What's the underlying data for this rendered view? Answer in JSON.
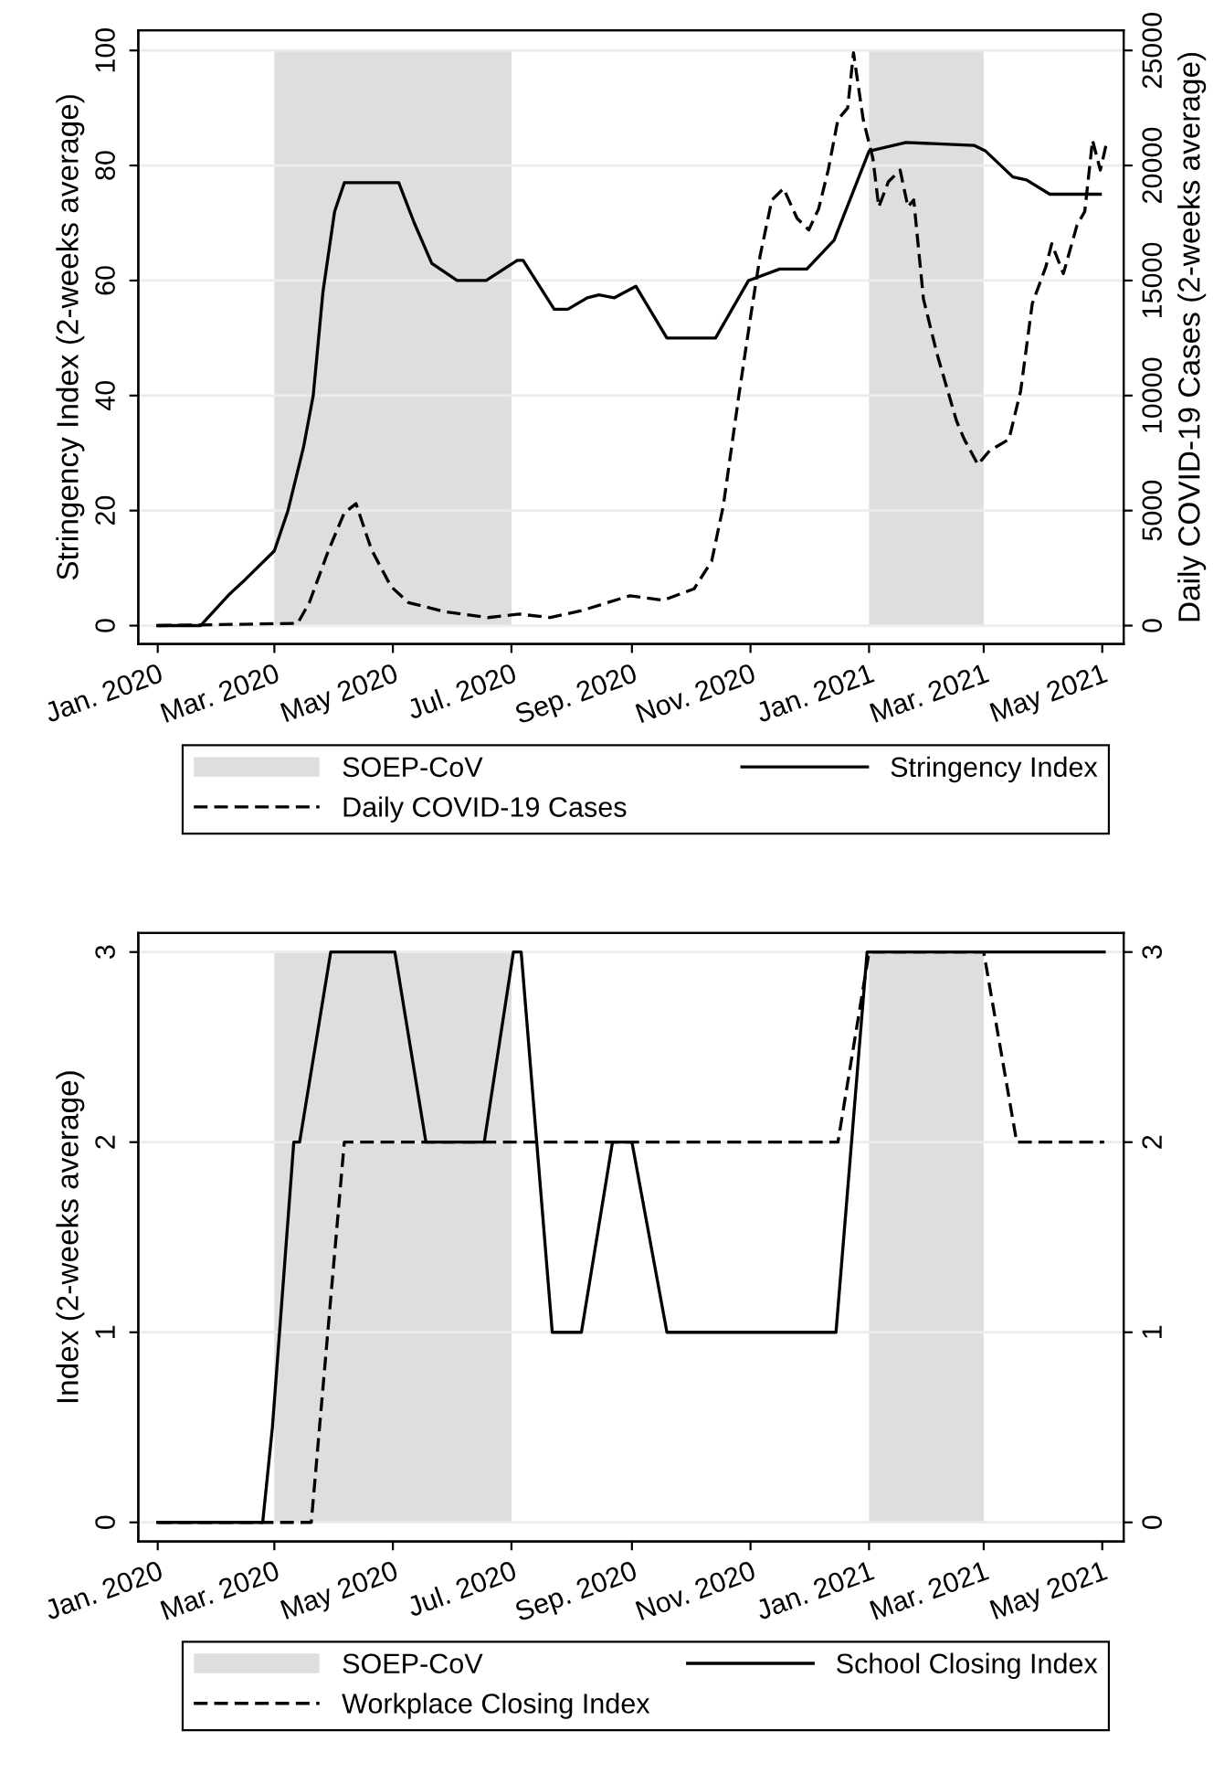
{
  "chart_data": [
    {
      "type": "line",
      "ylabel": "Stringency Index (2-weeks average)",
      "y2label": "Daily COVID-19 Cases (2-weeks average)",
      "xlim": [
        "2019-12-22",
        "2021-05-12"
      ],
      "xticks": [
        {
          "value": "2020-01-01",
          "label": "Jan. 2020"
        },
        {
          "value": "2020-03-01",
          "label": "Mar. 2020"
        },
        {
          "value": "2020-05-01",
          "label": "May 2020"
        },
        {
          "value": "2020-07-01",
          "label": "Jul. 2020"
        },
        {
          "value": "2020-09-01",
          "label": "Sep. 2020"
        },
        {
          "value": "2020-11-01",
          "label": "Nov. 2020"
        },
        {
          "value": "2021-01-01",
          "label": "Jan. 2021"
        },
        {
          "value": "2021-03-01",
          "label": "Mar. 2021"
        },
        {
          "value": "2021-05-01",
          "label": "May 2021"
        }
      ],
      "ylim": [
        -3.2,
        103.5
      ],
      "yticks": [
        0,
        20,
        40,
        60,
        80,
        100
      ],
      "y2lim": [
        -800,
        25875
      ],
      "y2ticks": [
        0,
        5000,
        10000,
        15000,
        20000,
        25000
      ],
      "grid": "y",
      "legend": "bottom",
      "bands": [
        {
          "axis": "x",
          "from": "2020-03-01",
          "to": "2020-07-01",
          "label": "SOEP-CoV",
          "color": "#dedede"
        },
        {
          "axis": "x",
          "from": "2021-01-01",
          "to": "2021-03-01",
          "color": "#dedede"
        }
      ],
      "series": [
        {
          "name": "Stringency Index",
          "color": "#000000",
          "line_style": "solid",
          "x": [
            "2020-01-01",
            "2020-01-23",
            "2020-02-07",
            "2020-02-15",
            "2020-03-01",
            "2020-03-08",
            "2020-03-16",
            "2020-03-21",
            "2020-03-26",
            "2020-04-01",
            "2020-04-06",
            "2020-05-04",
            "2020-05-12",
            "2020-05-21",
            "2020-06-03",
            "2020-06-18",
            "2020-07-04",
            "2020-07-07",
            "2020-07-23",
            "2020-07-30",
            "2020-08-09",
            "2020-08-15",
            "2020-08-23",
            "2020-09-03",
            "2020-09-19",
            "2020-10-14",
            "2020-10-31",
            "2020-11-16",
            "2020-11-30",
            "2020-12-14",
            "2021-01-01",
            "2021-01-20",
            "2021-02-24",
            "2021-03-02",
            "2021-03-16",
            "2021-03-23",
            "2021-04-04",
            "2021-04-30"
          ],
          "values": [
            0,
            0,
            5.5,
            8,
            13,
            20,
            31,
            40,
            58,
            72,
            77,
            77,
            70,
            63,
            60,
            60,
            63.5,
            63.5,
            55,
            55,
            57,
            57.5,
            57,
            59,
            50,
            50,
            60,
            62,
            62,
            67,
            82.5,
            84,
            83.5,
            82.5,
            78,
            77.5,
            75,
            75
          ]
        },
        {
          "name": "Daily COVID-19 Cases",
          "color": "#000000",
          "line_style": "dashed",
          "axis": "y2",
          "x": [
            "2020-01-01",
            "2020-03-13",
            "2020-03-19",
            "2020-03-29",
            "2020-04-06",
            "2020-04-12",
            "2020-04-20",
            "2020-04-30",
            "2020-05-09",
            "2020-05-28",
            "2020-06-19",
            "2020-07-05",
            "2020-07-21",
            "2020-08-06",
            "2020-08-31",
            "2020-09-17",
            "2020-10-03",
            "2020-10-12",
            "2020-10-18",
            "2020-10-26",
            "2020-11-01",
            "2020-11-06",
            "2020-11-12",
            "2020-11-18",
            "2020-11-25",
            "2020-12-01",
            "2020-12-06",
            "2020-12-11",
            "2020-12-16",
            "2020-12-21",
            "2020-12-24",
            "2020-12-29",
            "2021-01-03",
            "2021-01-06",
            "2021-01-11",
            "2021-01-17",
            "2021-01-21",
            "2021-01-24",
            "2021-01-29",
            "2021-02-05",
            "2021-02-15",
            "2021-02-19",
            "2021-02-26",
            "2021-03-04",
            "2021-03-14",
            "2021-03-20",
            "2021-03-26",
            "2021-04-02",
            "2021-04-05",
            "2021-04-11",
            "2021-04-18",
            "2021-04-22",
            "2021-04-26",
            "2021-04-30",
            "2021-05-03"
          ],
          "values": [
            0,
            100,
            1000,
            3300,
            4900,
            5300,
            3300,
            1700,
            1000,
            600,
            350,
            500,
            350,
            650,
            1300,
            1100,
            1600,
            2800,
            5200,
            10000,
            13400,
            16100,
            18500,
            19000,
            17700,
            17200,
            18100,
            19800,
            22000,
            22500,
            24900,
            22000,
            20300,
            18200,
            19300,
            19800,
            18200,
            18500,
            14200,
            11800,
            8900,
            8100,
            7000,
            7600,
            8100,
            10200,
            14000,
            15600,
            16600,
            15300,
            17400,
            18000,
            21100,
            19800,
            20900
          ]
        }
      ]
    },
    {
      "type": "line",
      "ylabel": "Index (2-weeks average)",
      "xlim": [
        "2019-12-22",
        "2021-05-12"
      ],
      "xticks": [
        {
          "value": "2020-01-01",
          "label": "Jan. 2020"
        },
        {
          "value": "2020-03-01",
          "label": "Mar. 2020"
        },
        {
          "value": "2020-05-01",
          "label": "May 2020"
        },
        {
          "value": "2020-07-01",
          "label": "Jul. 2020"
        },
        {
          "value": "2020-09-01",
          "label": "Sep. 2020"
        },
        {
          "value": "2020-11-01",
          "label": "Nov. 2020"
        },
        {
          "value": "2021-01-01",
          "label": "Jan. 2021"
        },
        {
          "value": "2021-03-01",
          "label": "Mar. 2021"
        },
        {
          "value": "2021-05-01",
          "label": "May 2021"
        }
      ],
      "ylim": [
        -0.1,
        3.1
      ],
      "yticks": [
        0,
        1,
        2,
        3
      ],
      "y2lim": [
        -0.1,
        3.1
      ],
      "y2ticks": [
        0,
        1,
        2,
        3
      ],
      "grid": "y",
      "legend": "bottom",
      "bands": [
        {
          "axis": "x",
          "from": "2020-03-01",
          "to": "2020-07-01",
          "label": "SOEP-CoV",
          "color": "#dedede"
        },
        {
          "axis": "x",
          "from": "2021-01-01",
          "to": "2021-03-01",
          "color": "#dedede"
        }
      ],
      "series": [
        {
          "name": "School Closing Index",
          "color": "#000000",
          "line_style": "solid",
          "x": [
            "2020-01-01",
            "2020-02-24",
            "2020-02-29",
            "2020-03-11",
            "2020-03-14",
            "2020-03-30",
            "2020-05-02",
            "2020-05-18",
            "2020-06-17",
            "2020-07-02",
            "2020-07-06",
            "2020-07-22",
            "2020-08-06",
            "2020-08-22",
            "2020-09-01",
            "2020-09-19",
            "2020-12-15",
            "2020-12-31",
            "2021-05-02"
          ],
          "values": [
            0,
            0,
            0.5,
            2,
            2,
            3,
            3,
            2,
            2,
            3,
            3,
            1,
            1,
            2,
            2,
            1,
            1,
            3,
            3
          ]
        },
        {
          "name": "Workplace Closing Index",
          "color": "#000000",
          "line_style": "dashed",
          "x": [
            "2020-01-01",
            "2020-03-20",
            "2020-04-06",
            "2020-12-16",
            "2021-01-01",
            "2021-03-01",
            "2021-03-18",
            "2021-05-02"
          ],
          "values": [
            0,
            0,
            2,
            2,
            3,
            3,
            2,
            2
          ]
        }
      ]
    }
  ]
}
